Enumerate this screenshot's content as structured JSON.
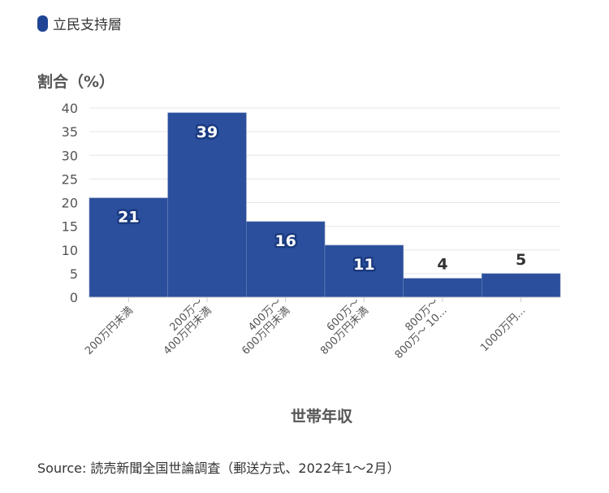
{
  "legend": {
    "label": "立民支持層",
    "color": "#1f4496"
  },
  "ylabel": "割合（%）",
  "xlabel": "世帯年収",
  "source": "Source: 読売新聞全国世論調査（郵送方式、2022年1〜2月）",
  "chart_data": {
    "type": "bar",
    "title": "",
    "xlabel": "世帯年収",
    "ylabel": "割合（%）",
    "categories": [
      [
        "200万円未満"
      ],
      [
        "200万〜",
        "400万円未満"
      ],
      [
        "400万〜",
        "600万円未満"
      ],
      [
        "600万〜",
        "800万円未満"
      ],
      [
        "800万〜",
        "800万〜 10..."
      ],
      [
        "1000万円..."
      ]
    ],
    "series": [
      {
        "name": "立民支持層",
        "values": [
          21,
          39,
          16,
          11,
          4,
          5
        ]
      }
    ],
    "ylim": [
      0,
      40
    ],
    "yticks": [
      0,
      5,
      10,
      15,
      20,
      25,
      30,
      35,
      40
    ],
    "grid": true,
    "legend_position": "top-left",
    "bar_color": "#2b4f9c"
  }
}
